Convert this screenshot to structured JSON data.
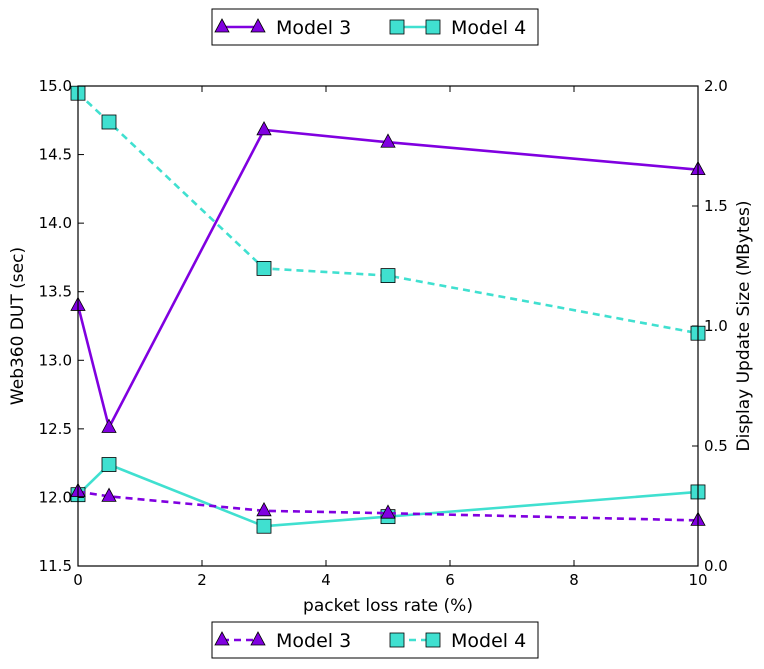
{
  "chart_data": {
    "type": "line",
    "x": [
      0,
      0.5,
      3,
      5,
      10
    ],
    "xlabel": "packet loss rate (%)",
    "xlim": [
      0,
      10
    ],
    "x_ticks": [
      "0",
      "2",
      "4",
      "6",
      "8",
      "10"
    ],
    "left_axis": {
      "label": "Web360 DUT (sec)",
      "ylim": [
        11.5,
        15.0
      ],
      "ticks": [
        "11.5",
        "12.0",
        "12.5",
        "13.0",
        "13.5",
        "14.0",
        "14.5",
        "15.0"
      ]
    },
    "right_axis": {
      "label": "Display Update Size (MBytes)",
      "ylim": [
        0.0,
        2.0
      ],
      "ticks": [
        "0.0",
        "0.5",
        "1.0",
        "1.5",
        "2.0"
      ]
    },
    "series": [
      {
        "name": "Model 3",
        "axis": "left",
        "linestyle": "solid",
        "marker": "triangle",
        "color": "#8000e0",
        "values": [
          13.4,
          12.51,
          14.68,
          14.59,
          14.39
        ]
      },
      {
        "name": "Model 4",
        "axis": "left",
        "linestyle": "solid",
        "marker": "square",
        "color": "#40e0d0",
        "values": [
          12.02,
          12.24,
          11.79,
          11.86,
          12.04
        ]
      },
      {
        "name": "Model 3",
        "axis": "right",
        "linestyle": "dashed",
        "marker": "triangle",
        "color": "#8000e0",
        "values": [
          0.31,
          0.29,
          0.23,
          0.22,
          0.19
        ]
      },
      {
        "name": "Model 4",
        "axis": "right",
        "linestyle": "dashed",
        "marker": "square",
        "color": "#40e0d0",
        "values": [
          1.97,
          1.85,
          1.24,
          1.21,
          0.97
        ]
      }
    ],
    "legends": [
      {
        "position": "top",
        "linestyle": "solid",
        "entries": [
          {
            "label": "Model 3",
            "marker": "triangle",
            "color": "#8000e0"
          },
          {
            "label": "Model 4",
            "marker": "square",
            "color": "#40e0d0"
          }
        ]
      },
      {
        "position": "bottom",
        "linestyle": "dashed",
        "entries": [
          {
            "label": "Model 3",
            "marker": "triangle",
            "color": "#8000e0"
          },
          {
            "label": "Model 4",
            "marker": "square",
            "color": "#40e0d0"
          }
        ]
      }
    ],
    "grid": false
  }
}
